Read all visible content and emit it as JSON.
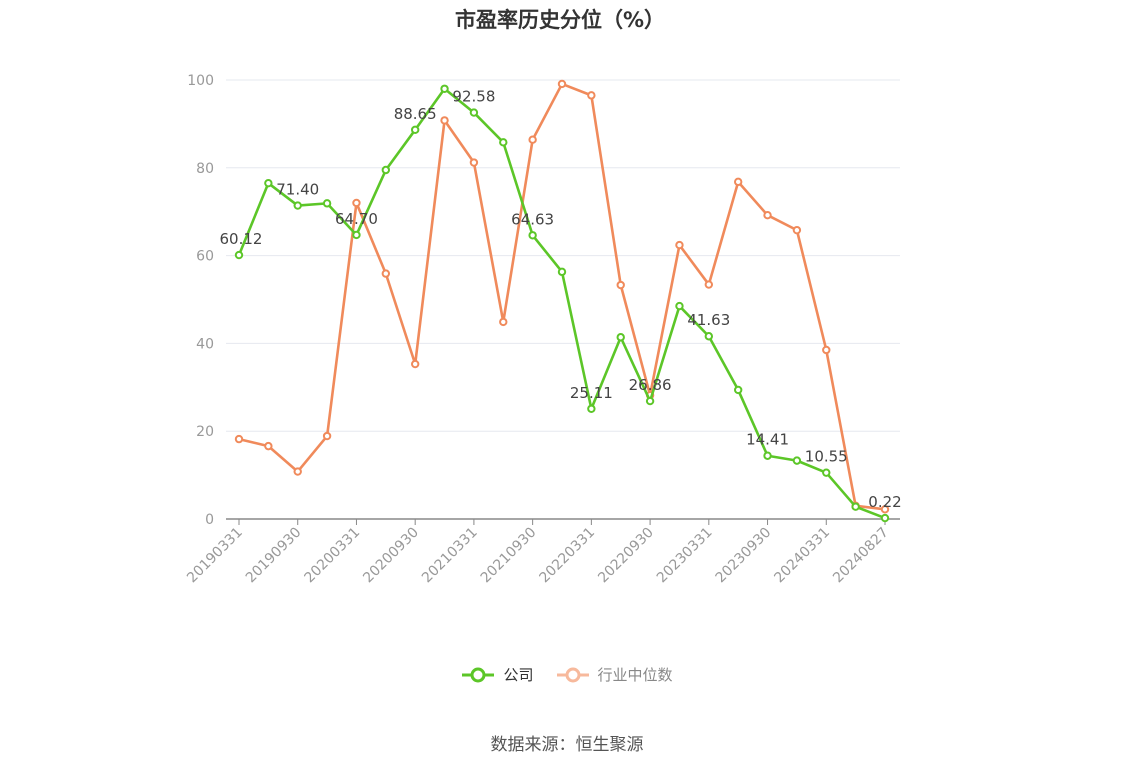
{
  "title": "市盈率历史分位（%）",
  "source": "数据来源：恒生聚源",
  "colors": {
    "company": "#5cc628",
    "industry": "#f08a5b",
    "industry_legend": "#f7b99c",
    "grid": "#e6e8ef",
    "axis": "#999999"
  },
  "chart_data": {
    "type": "line",
    "title": "市盈率历史分位（%）",
    "ylim": [
      0,
      100
    ],
    "yticks": [
      0,
      20,
      40,
      60,
      80,
      100
    ],
    "x_tick_labels": [
      "20190331",
      "20190930",
      "20200331",
      "20200930",
      "20210331",
      "20210930",
      "20220331",
      "20220930",
      "20230331",
      "20230930",
      "20240331",
      "20240827"
    ],
    "x_tick_indices": [
      0,
      2,
      4,
      6,
      8,
      10,
      12,
      14,
      16,
      18,
      20,
      22
    ],
    "grid": true,
    "legend_position": "bottom",
    "series": [
      {
        "name": "公司",
        "values": [
          60.12,
          76.5,
          71.4,
          71.9,
          64.7,
          79.5,
          88.65,
          98.0,
          92.58,
          85.8,
          64.63,
          56.3,
          25.11,
          41.4,
          26.86,
          48.5,
          41.63,
          29.4,
          14.41,
          13.3,
          10.55,
          2.8,
          0.22
        ]
      },
      {
        "name": "行业中位数",
        "values": [
          18.2,
          16.6,
          10.8,
          18.9,
          72.0,
          55.9,
          35.3,
          90.8,
          81.2,
          44.9,
          86.4,
          99.1,
          96.5,
          53.3,
          28.2,
          62.4,
          53.4,
          76.8,
          69.2,
          65.8,
          38.5,
          3.0,
          2.2
        ]
      }
    ],
    "data_labels": [
      {
        "series": 0,
        "index": 0,
        "text": "60.12"
      },
      {
        "series": 0,
        "index": 2,
        "text": "71.40"
      },
      {
        "series": 0,
        "index": 4,
        "text": "64.70"
      },
      {
        "series": 0,
        "index": 6,
        "text": "88.65"
      },
      {
        "series": 0,
        "index": 8,
        "text": "92.58"
      },
      {
        "series": 0,
        "index": 10,
        "text": "64.63"
      },
      {
        "series": 0,
        "index": 12,
        "text": "25.11"
      },
      {
        "series": 0,
        "index": 14,
        "text": "26.86"
      },
      {
        "series": 0,
        "index": 16,
        "text": "41.63"
      },
      {
        "series": 0,
        "index": 18,
        "text": "14.41"
      },
      {
        "series": 0,
        "index": 20,
        "text": "10.55"
      },
      {
        "series": 0,
        "index": 22,
        "text": "0.22"
      }
    ]
  }
}
